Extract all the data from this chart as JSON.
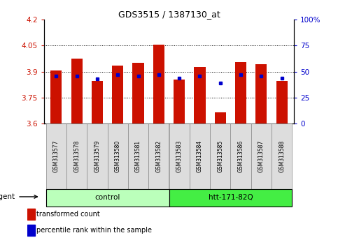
{
  "title": "GDS3515 / 1387130_at",
  "samples": [
    "GSM313577",
    "GSM313578",
    "GSM313579",
    "GSM313580",
    "GSM313581",
    "GSM313582",
    "GSM313583",
    "GSM313584",
    "GSM313585",
    "GSM313586",
    "GSM313587",
    "GSM313588"
  ],
  "transformed_count": [
    3.905,
    3.975,
    3.845,
    3.935,
    3.95,
    4.055,
    3.855,
    3.925,
    3.665,
    3.955,
    3.945,
    3.845
  ],
  "percentile_rank": [
    46,
    46,
    43,
    47,
    46,
    47,
    44,
    46,
    39,
    47,
    46,
    44
  ],
  "ylim_left": [
    3.6,
    4.2
  ],
  "ylim_right": [
    0,
    100
  ],
  "yticks_left": [
    3.6,
    3.75,
    3.9,
    4.05,
    4.2
  ],
  "yticks_right": [
    0,
    25,
    50,
    75,
    100
  ],
  "ytick_labels_left": [
    "3.6",
    "3.75",
    "3.9",
    "4.05",
    "4.2"
  ],
  "ytick_labels_right": [
    "0",
    "25",
    "50",
    "75",
    "100%"
  ],
  "hlines": [
    3.75,
    3.9,
    4.05
  ],
  "bar_color": "#cc1100",
  "dot_color": "#0000cc",
  "bar_width": 0.55,
  "control_label": "control",
  "treatment_label": "htt-171-82Q",
  "agent_label": "agent",
  "control_indices": [
    0,
    1,
    2,
    3,
    4,
    5
  ],
  "treatment_indices": [
    6,
    7,
    8,
    9,
    10,
    11
  ],
  "legend_bar_label": "transformed count",
  "legend_dot_label": "percentile rank within the sample",
  "control_color": "#bbffbb",
  "treatment_color": "#44ee44",
  "left_color": "#cc1100",
  "right_color": "#0000cc",
  "figsize": [
    4.83,
    3.54
  ],
  "dpi": 100
}
